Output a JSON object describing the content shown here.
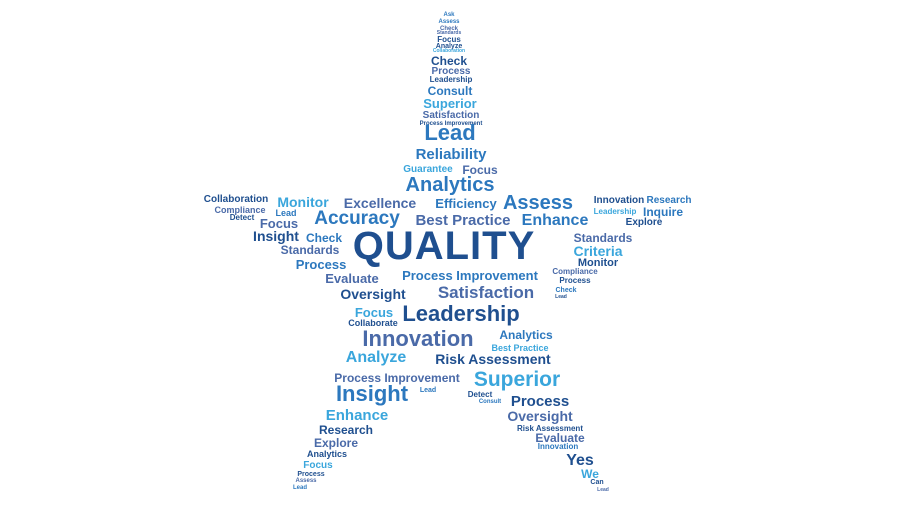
{
  "colors": {
    "dark": "#1f4f8f",
    "mid": "#2c78be",
    "light": "#3aa6dc",
    "slate": "#4a6aa8"
  },
  "words": [
    {
      "text": "Ask",
      "color": "mid"
    },
    {
      "text": "Assess",
      "color": "mid"
    },
    {
      "text": "Check",
      "color": "slate"
    },
    {
      "text": "Standards",
      "color": "slate"
    },
    {
      "text": "Focus",
      "color": "dark"
    },
    {
      "text": "Analyze",
      "color": "dark"
    },
    {
      "text": "Collaboration",
      "color": "light"
    },
    {
      "text": "Check",
      "color": "dark"
    },
    {
      "text": "Process",
      "color": "slate"
    },
    {
      "text": "Leadership",
      "color": "dark"
    },
    {
      "text": "Consult",
      "color": "mid"
    },
    {
      "text": "Superior",
      "color": "light"
    },
    {
      "text": "Satisfaction",
      "color": "slate"
    },
    {
      "text": "Process Improvement",
      "color": "dark"
    },
    {
      "text": "Lead",
      "color": "mid"
    },
    {
      "text": "Reliability",
      "color": "mid"
    },
    {
      "text": "Guarantee",
      "color": "light"
    },
    {
      "text": "Focus",
      "color": "slate"
    },
    {
      "text": "Analytics",
      "color": "mid"
    },
    {
      "text": "Collaboration",
      "color": "dark"
    },
    {
      "text": "Monitor",
      "color": "light"
    },
    {
      "text": "Excellence",
      "color": "slate"
    },
    {
      "text": "Efficiency",
      "color": "mid"
    },
    {
      "text": "Assess",
      "color": "mid"
    },
    {
      "text": "Innovation",
      "color": "dark"
    },
    {
      "text": "Research",
      "color": "mid"
    },
    {
      "text": "Compliance",
      "color": "slate"
    },
    {
      "text": "Lead",
      "color": "mid"
    },
    {
      "text": "Leadership",
      "color": "light"
    },
    {
      "text": "Inquire",
      "color": "mid"
    },
    {
      "text": "Detect",
      "color": "dark"
    },
    {
      "text": "Focus",
      "color": "slate"
    },
    {
      "text": "Accuracy",
      "color": "mid"
    },
    {
      "text": "Best Practice",
      "color": "slate"
    },
    {
      "text": "Enhance",
      "color": "mid"
    },
    {
      "text": "Explore",
      "color": "dark"
    },
    {
      "text": "Insight",
      "color": "dark"
    },
    {
      "text": "Check",
      "color": "mid"
    },
    {
      "text": "QUALITY",
      "color": "dark"
    },
    {
      "text": "Standards",
      "color": "slate"
    },
    {
      "text": "Standards",
      "color": "slate"
    },
    {
      "text": "Criteria",
      "color": "light"
    },
    {
      "text": "Process",
      "color": "mid"
    },
    {
      "text": "Monitor",
      "color": "dark"
    },
    {
      "text": "Evaluate",
      "color": "slate"
    },
    {
      "text": "Process Improvement",
      "color": "mid"
    },
    {
      "text": "Compliance",
      "color": "slate"
    },
    {
      "text": "Process",
      "color": "dark"
    },
    {
      "text": "Oversight",
      "color": "dark"
    },
    {
      "text": "Satisfaction",
      "color": "slate"
    },
    {
      "text": "Check",
      "color": "mid"
    },
    {
      "text": "Lead",
      "color": "dark"
    },
    {
      "text": "Focus",
      "color": "light"
    },
    {
      "text": "Leadership",
      "color": "dark"
    },
    {
      "text": "Collaborate",
      "color": "dark"
    },
    {
      "text": "Innovation",
      "color": "slate"
    },
    {
      "text": "Analytics",
      "color": "mid"
    },
    {
      "text": "Best Practice",
      "color": "light"
    },
    {
      "text": "Analyze",
      "color": "light"
    },
    {
      "text": "Risk Assessment",
      "color": "dark"
    },
    {
      "text": "Process Improvement",
      "color": "slate"
    },
    {
      "text": "Superior",
      "color": "light"
    },
    {
      "text": "Insight",
      "color": "mid"
    },
    {
      "text": "Lead",
      "color": "mid"
    },
    {
      "text": "Detect",
      "color": "dark"
    },
    {
      "text": "Consult",
      "color": "mid"
    },
    {
      "text": "Process",
      "color": "dark"
    },
    {
      "text": "Enhance",
      "color": "light"
    },
    {
      "text": "Oversight",
      "color": "slate"
    },
    {
      "text": "Research",
      "color": "dark"
    },
    {
      "text": "Risk Assessment",
      "color": "dark"
    },
    {
      "text": "Explore",
      "color": "slate"
    },
    {
      "text": "Evaluate",
      "color": "slate"
    },
    {
      "text": "Analytics",
      "color": "dark"
    },
    {
      "text": "Innovation",
      "color": "mid"
    },
    {
      "text": "Yes",
      "color": "dark"
    },
    {
      "text": "Focus",
      "color": "light"
    },
    {
      "text": "We",
      "color": "light"
    },
    {
      "text": "Process",
      "color": "dark"
    },
    {
      "text": "Assess",
      "color": "slate"
    },
    {
      "text": "Can",
      "color": "dark"
    },
    {
      "text": "Lead",
      "color": "mid"
    },
    {
      "text": "Lead",
      "color": "slate"
    }
  ]
}
